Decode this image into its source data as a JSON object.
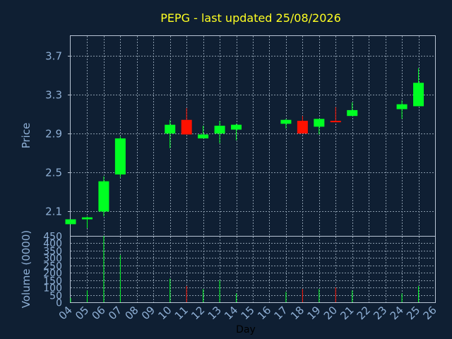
{
  "chart_data": {
    "type": "candlestick",
    "title": "PEPG - last updated 25/08/2026",
    "xlabel": "Day",
    "price_panel": {
      "ylabel": "Price",
      "ylim": [
        1.85,
        3.9
      ],
      "yticks": [
        "2.1",
        "2.5",
        "2.9",
        "3.3",
        "3.7"
      ],
      "ytick_values": [
        2.1,
        2.5,
        2.9,
        3.3,
        3.7
      ]
    },
    "volume_panel": {
      "ylabel": "Volume (0000)",
      "ylim": [
        0,
        450
      ],
      "yticks": [
        "0",
        "50",
        "100",
        "150",
        "200",
        "250",
        "300",
        "350",
        "400",
        "450"
      ],
      "ytick_values": [
        0,
        50,
        100,
        150,
        200,
        250,
        300,
        350,
        400,
        450
      ]
    },
    "x_ticks": [
      "04",
      "05",
      "06",
      "07",
      "08",
      "09",
      "10",
      "11",
      "12",
      "13",
      "14",
      "15",
      "16",
      "17",
      "18",
      "19",
      "20",
      "21",
      "22",
      "23",
      "24",
      "25",
      "26"
    ],
    "candles": [
      {
        "day": "04",
        "open": 1.97,
        "close": 2.02,
        "high": 2.02,
        "low": 1.97,
        "volume": 30
      },
      {
        "day": "05",
        "open": 2.02,
        "close": 2.04,
        "high": 2.05,
        "low": 1.93,
        "volume": 80
      },
      {
        "day": "06",
        "open": 2.1,
        "close": 2.41,
        "high": 2.46,
        "low": 2.05,
        "volume": 450
      },
      {
        "day": "07",
        "open": 2.48,
        "close": 2.85,
        "high": 2.87,
        "low": 2.45,
        "volume": 320
      },
      {
        "day": "10",
        "open": 2.9,
        "close": 2.99,
        "high": 3.04,
        "low": 2.75,
        "volume": 160
      },
      {
        "day": "11",
        "open": 3.04,
        "close": 2.89,
        "high": 3.16,
        "low": 2.89,
        "volume": 110
      },
      {
        "day": "12",
        "open": 2.85,
        "close": 2.89,
        "high": 2.98,
        "low": 2.85,
        "volume": 90
      },
      {
        "day": "13",
        "open": 2.9,
        "close": 2.98,
        "high": 3.03,
        "low": 2.8,
        "volume": 150
      },
      {
        "day": "14",
        "open": 2.94,
        "close": 2.99,
        "high": 3.0,
        "low": 2.83,
        "volume": 60
      },
      {
        "day": "17",
        "open": 3.0,
        "close": 3.04,
        "high": 3.05,
        "low": 2.95,
        "volume": 70
      },
      {
        "day": "18",
        "open": 3.03,
        "close": 2.9,
        "high": 3.08,
        "low": 2.9,
        "volume": 90
      },
      {
        "day": "19",
        "open": 2.97,
        "close": 3.05,
        "high": 3.05,
        "low": 2.89,
        "volume": 90
      },
      {
        "day": "20",
        "open": 3.03,
        "close": 3.02,
        "high": 3.17,
        "low": 3.02,
        "volume": 100
      },
      {
        "day": "21",
        "open": 3.08,
        "close": 3.14,
        "high": 3.22,
        "low": 3.08,
        "volume": 80
      },
      {
        "day": "24",
        "open": 3.15,
        "close": 3.2,
        "high": 3.24,
        "low": 3.05,
        "volume": 60
      },
      {
        "day": "25",
        "open": 3.18,
        "close": 3.42,
        "high": 3.57,
        "low": 3.18,
        "volume": 110
      }
    ],
    "grid": true,
    "colors": {
      "background": "#0f1f33",
      "plot_border": "#b8c4d4",
      "grid": "#8899aa",
      "up": "#00ff22",
      "down": "#ff1100",
      "title": "#ffff22",
      "axis_text": "#8fb0d6",
      "xlabel_text": "#000000"
    }
  }
}
